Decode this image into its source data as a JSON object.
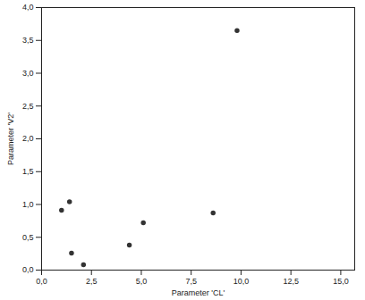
{
  "chart_data": {
    "type": "scatter",
    "x_label": "Parameter 'CL'",
    "y_label": "Parameter 'V2'",
    "x": [
      1.0,
      1.4,
      1.5,
      2.1,
      4.4,
      5.1,
      8.6,
      9.8
    ],
    "values": [
      0.91,
      1.04,
      0.26,
      0.08,
      0.38,
      0.72,
      0.87,
      3.65
    ],
    "color": "#333333",
    "marker": "circle",
    "xlim": [
      0,
      15.7
    ],
    "xticks": [
      {
        "value": 0,
        "label": "0,0"
      },
      {
        "value": 2.5,
        "label": "2,5"
      },
      {
        "value": 5,
        "label": "5,0"
      },
      {
        "value": 7.5,
        "label": "7,5"
      },
      {
        "value": 10,
        "label": "10,0"
      },
      {
        "value": 12.5,
        "label": "12,5"
      },
      {
        "value": 15,
        "label": "15,0"
      }
    ],
    "ylim": [
      0,
      4
    ],
    "yticks": [
      {
        "value": 0,
        "label": "0,0"
      },
      {
        "value": 0.5,
        "label": "0,5"
      },
      {
        "value": 1,
        "label": "1,0"
      },
      {
        "value": 1.5,
        "label": "1,5"
      },
      {
        "value": 2,
        "label": "2,0"
      },
      {
        "value": 2.5,
        "label": "2,5"
      },
      {
        "value": 3,
        "label": "3,0"
      },
      {
        "value": 3.5,
        "label": "3,5"
      },
      {
        "value": 4,
        "label": "4,0"
      }
    ],
    "grid": false
  }
}
